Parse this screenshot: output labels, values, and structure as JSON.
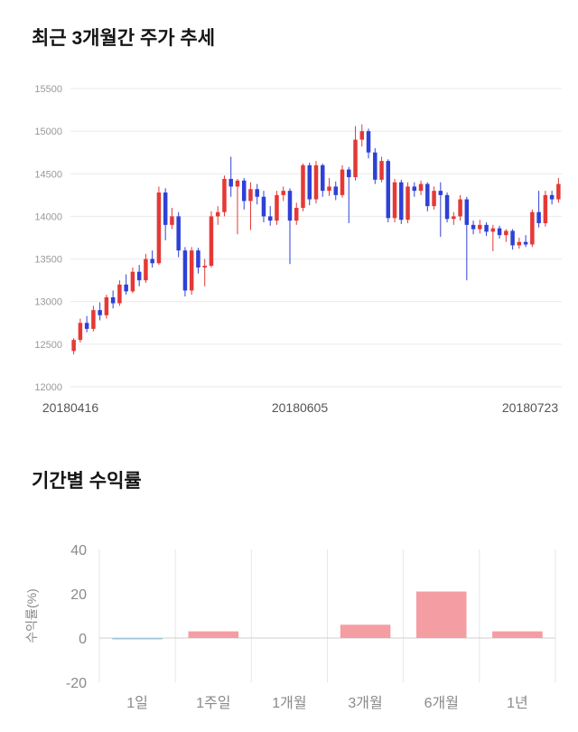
{
  "price_section": {
    "title": "최근 3개월간 주가 추세"
  },
  "returns_section": {
    "title": "기간별 수익률"
  },
  "chart_data": [
    {
      "type": "candlestick",
      "title": "최근 3개월간 주가 추세",
      "ylim": [
        12000,
        15500
      ],
      "yticks": [
        12000,
        12500,
        13000,
        13500,
        14000,
        14500,
        15000,
        15500
      ],
      "xtick_labels": [
        "20180416",
        "20180605",
        "20180723"
      ],
      "grid": "horizontal",
      "legend": "none",
      "up_color": "#e53935",
      "down_color": "#2e41d6",
      "grid_color": "#e9e9e9",
      "ytick_color": "#999999",
      "xtick_color": "#555555",
      "candles_ohlc": [
        [
          12420,
          12570,
          12380,
          12550
        ],
        [
          12550,
          12800,
          12520,
          12750
        ],
        [
          12750,
          12830,
          12640,
          12680
        ],
        [
          12680,
          12950,
          12650,
          12900
        ],
        [
          12900,
          12990,
          12780,
          12840
        ],
        [
          12840,
          13080,
          12800,
          13050
        ],
        [
          13050,
          13130,
          12920,
          12980
        ],
        [
          12980,
          13250,
          12950,
          13200
        ],
        [
          13200,
          13320,
          13080,
          13120
        ],
        [
          13120,
          13400,
          13100,
          13350
        ],
        [
          13350,
          13430,
          13180,
          13250
        ],
        [
          13250,
          13560,
          13220,
          13500
        ],
        [
          13500,
          13600,
          13400,
          13450
        ],
        [
          13450,
          14350,
          13430,
          14280
        ],
        [
          14280,
          14330,
          13720,
          13900
        ],
        [
          13900,
          14100,
          13850,
          14000
        ],
        [
          14000,
          14050,
          13520,
          13600
        ],
        [
          13600,
          13640,
          13060,
          13130
        ],
        [
          13130,
          13640,
          13080,
          13600
        ],
        [
          13600,
          13630,
          13330,
          13400
        ],
        [
          13400,
          13500,
          13180,
          13420
        ],
        [
          13420,
          14060,
          13400,
          14000
        ],
        [
          14000,
          14120,
          13900,
          14050
        ],
        [
          14050,
          14480,
          14000,
          14440
        ],
        [
          14440,
          14700,
          14230,
          14350
        ],
        [
          14350,
          14440,
          13790,
          14420
        ],
        [
          14420,
          14450,
          14080,
          14180
        ],
        [
          14180,
          14400,
          13840,
          14320
        ],
        [
          14320,
          14380,
          14140,
          14230
        ],
        [
          14230,
          14300,
          13930,
          14000
        ],
        [
          14000,
          14120,
          13890,
          13950
        ],
        [
          13950,
          14300,
          13900,
          14250
        ],
        [
          14250,
          14350,
          14180,
          14300
        ],
        [
          14300,
          14330,
          13440,
          13950
        ],
        [
          13950,
          14160,
          13900,
          14100
        ],
        [
          14100,
          14620,
          14060,
          14600
        ],
        [
          14600,
          14630,
          14130,
          14200
        ],
        [
          14200,
          14650,
          14150,
          14600
        ],
        [
          14600,
          14620,
          14230,
          14300
        ],
        [
          14300,
          14450,
          14240,
          14350
        ],
        [
          14350,
          14410,
          14190,
          14250
        ],
        [
          14250,
          14600,
          14220,
          14550
        ],
        [
          14550,
          14580,
          13920,
          14460
        ],
        [
          14460,
          15060,
          14420,
          14900
        ],
        [
          14900,
          15080,
          14820,
          15000
        ],
        [
          15000,
          15030,
          14680,
          14750
        ],
        [
          14750,
          14800,
          14380,
          14430
        ],
        [
          14430,
          14700,
          14400,
          14650
        ],
        [
          14650,
          14670,
          13930,
          13980
        ],
        [
          13980,
          14440,
          13930,
          14400
        ],
        [
          14400,
          14430,
          13910,
          13960
        ],
        [
          13960,
          14400,
          13920,
          14350
        ],
        [
          14350,
          14400,
          14230,
          14300
        ],
        [
          14300,
          14420,
          14250,
          14380
        ],
        [
          14380,
          14400,
          14060,
          14120
        ],
        [
          14120,
          14350,
          14080,
          14300
        ],
        [
          14300,
          14400,
          13760,
          14250
        ],
        [
          14250,
          14280,
          13930,
          13970
        ],
        [
          13970,
          14050,
          13900,
          14000
        ],
        [
          14000,
          14250,
          13950,
          14200
        ],
        [
          14200,
          14230,
          13250,
          13900
        ],
        [
          13900,
          13950,
          13790,
          13850
        ],
        [
          13850,
          13960,
          13800,
          13900
        ],
        [
          13900,
          13930,
          13770,
          13820
        ],
        [
          13820,
          13900,
          13590,
          13860
        ],
        [
          13860,
          13890,
          13740,
          13780
        ],
        [
          13780,
          13850,
          13700,
          13830
        ],
        [
          13830,
          13850,
          13610,
          13660
        ],
        [
          13660,
          13750,
          13620,
          13700
        ],
        [
          13700,
          13780,
          13640,
          13670
        ],
        [
          13670,
          14080,
          13640,
          14050
        ],
        [
          14050,
          14300,
          13870,
          13920
        ],
        [
          13920,
          14300,
          13880,
          14250
        ],
        [
          14250,
          14300,
          14140,
          14200
        ],
        [
          14200,
          14450,
          14160,
          14380
        ]
      ]
    },
    {
      "type": "bar",
      "title": "기간별 수익률",
      "ylabel": "수익률(%)",
      "categories": [
        "1일",
        "1주일",
        "1개월",
        "3개월",
        "6개월",
        "1년"
      ],
      "values": [
        -0.3,
        3,
        0,
        6,
        21,
        3
      ],
      "ylim": [
        -20,
        40
      ],
      "yticks": [
        -20,
        0,
        20,
        40
      ],
      "grid": "vertical",
      "legend": "none",
      "positive_color": "#f49da3",
      "negative_color": "#9fc6d8",
      "grid_color": "#e7e7e7",
      "zero_line_color": "#cfcfcf",
      "tick_color": "#8a8a8a"
    }
  ]
}
